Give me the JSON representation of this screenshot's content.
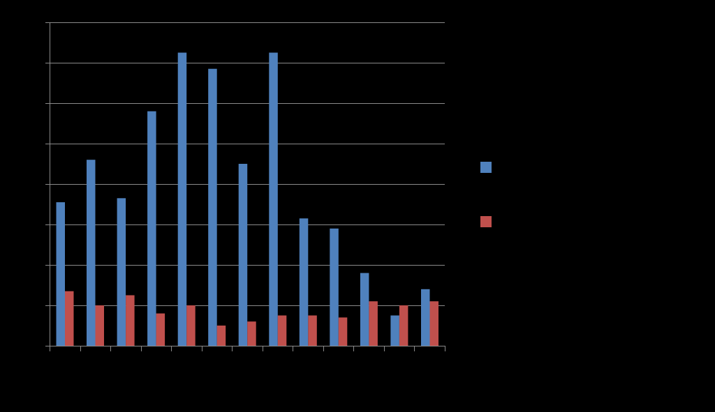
{
  "chart_data": {
    "type": "bar",
    "title": "",
    "xlabel": "",
    "ylabel": "",
    "categories": [
      "",
      "",
      "",
      "",
      "",
      "",
      "",
      "",
      "",
      "",
      "",
      "",
      ""
    ],
    "ylim": [
      0,
      8
    ],
    "grid": true,
    "legend_position": "right",
    "series": [
      {
        "color": "#4F81BD",
        "values": [
          3.55,
          4.6,
          3.65,
          5.8,
          7.25,
          6.85,
          4.5,
          7.25,
          3.15,
          2.9,
          1.8,
          0.75,
          1.4
        ]
      },
      {
        "color": "#C0504D",
        "values": [
          1.35,
          1.0,
          1.25,
          0.8,
          1.0,
          0.5,
          0.6,
          0.75,
          0.75,
          0.7,
          1.1,
          1.0,
          1.1
        ]
      }
    ]
  }
}
